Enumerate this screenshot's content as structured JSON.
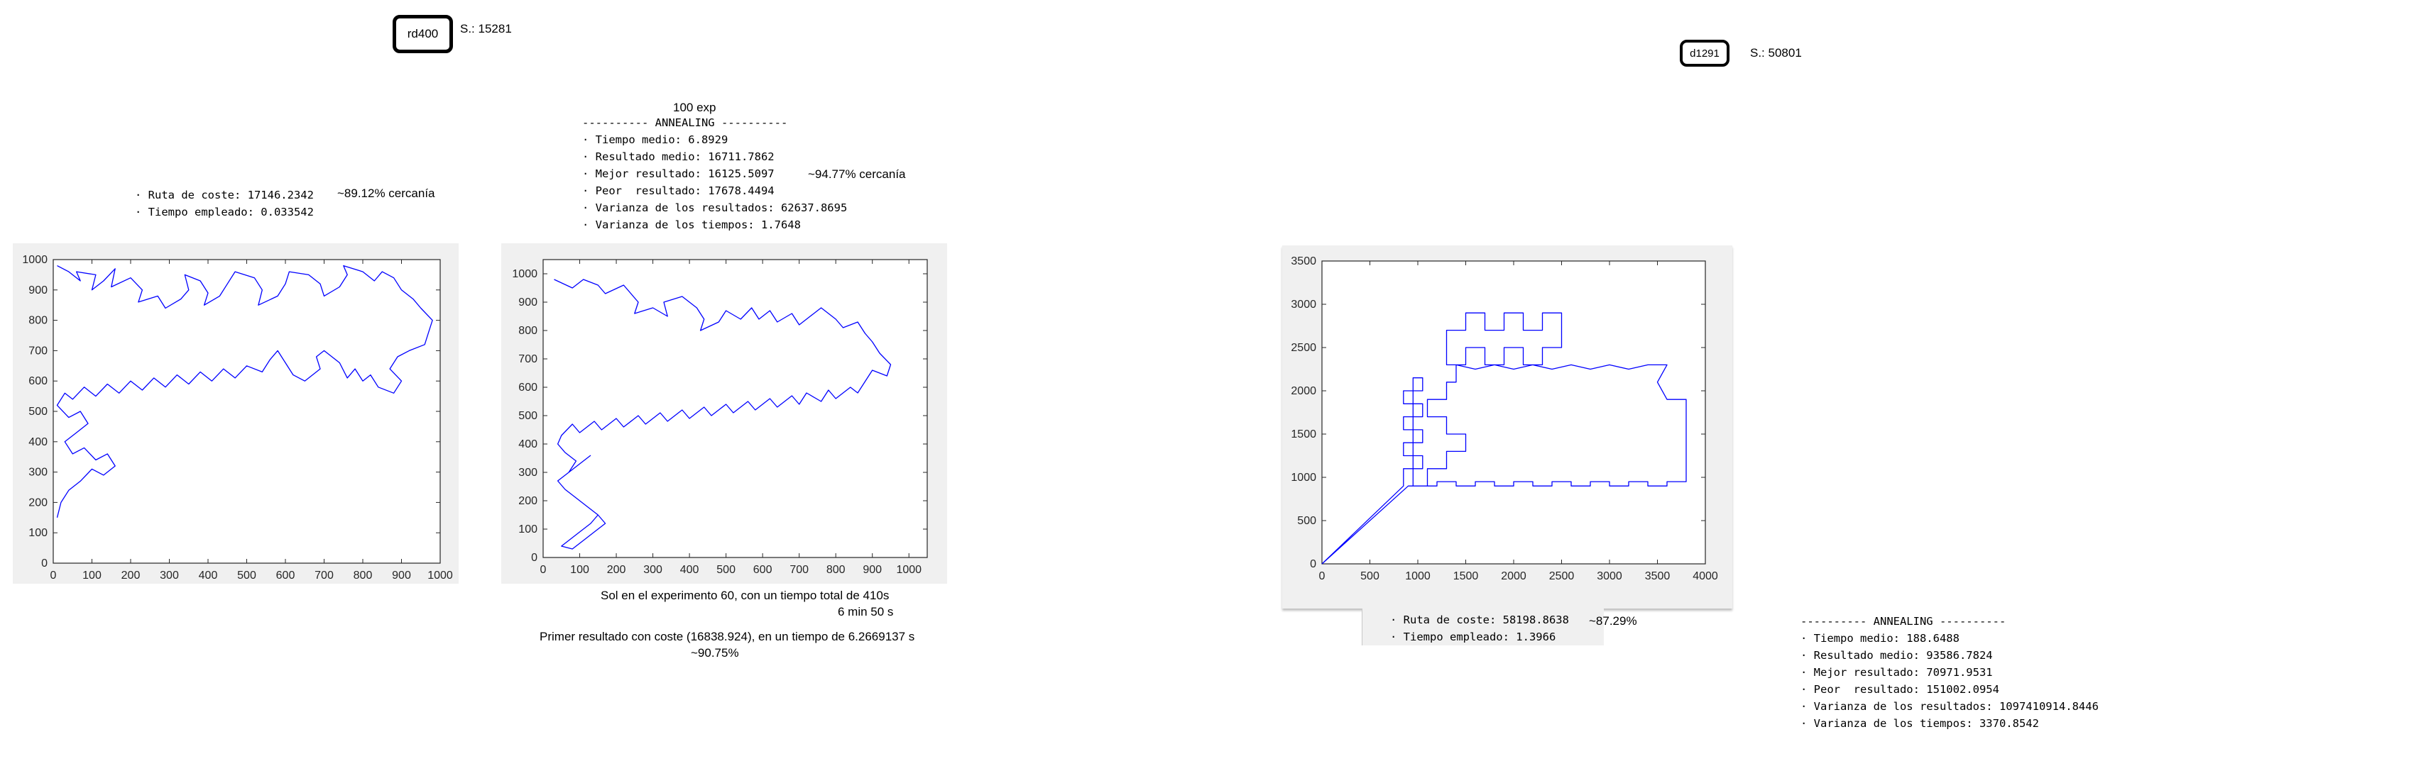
{
  "left": {
    "tag": "rd400",
    "s_label": "S.: 15281",
    "greedy_lines": [
      "· Ruta de coste: 17146.2342",
      "· Tiempo empleado: 0.033542"
    ],
    "greedy_pct": "~89.12% cercanía",
    "exp_title": "100 exp",
    "annealing_lines": [
      "---------- ANNEALING ----------",
      "· Tiempo medio: 6.8929",
      "· Resultado medio: 16711.7862",
      "· Mejor resultado: 16125.5097",
      "· Peor  resultado: 17678.4494",
      "· Varianza de los resultados: 62637.8695",
      "· Varianza de los tiempos: 1.7648"
    ],
    "best_pct": "~94.77% cercanía",
    "note1": "Sol en el experimento 60, con un tiempo total de 410s",
    "note1b": "6 min 50 s",
    "note2": "Primer resultado con coste (16838.924), en un tiempo de 6.2669137 s",
    "note2b": "~90.75%"
  },
  "right": {
    "tag": "d1291",
    "s_label": "S.: 50801",
    "greedy_lines": [
      "· Ruta de coste: 58198.8638",
      "· Tiempo empleado: 1.3966"
    ],
    "greedy_pct": "~87.29%",
    "annealing_lines": [
      "---------- ANNEALING ----------",
      "· Tiempo medio: 188.6488",
      "· Resultado medio: 93586.7824",
      "· Mejor resultado: 70971.9531",
      "· Peor  resultado: 151002.0954",
      "· Varianza de los resultados: 1097410914.8446",
      "· Varianza de los tiempos: 3370.8542"
    ]
  },
  "chart_data": [
    {
      "type": "line",
      "color": "#0000ff",
      "xlim": [
        0,
        1000
      ],
      "ylim": [
        0,
        1000
      ],
      "xticks": [
        0,
        100,
        200,
        300,
        400,
        500,
        600,
        700,
        800,
        900,
        1000
      ],
      "yticks": [
        0,
        100,
        200,
        300,
        400,
        500,
        600,
        700,
        800,
        900,
        1000
      ],
      "x": [
        10,
        40,
        70,
        60,
        110,
        100,
        130,
        160,
        150,
        200,
        230,
        220,
        270,
        290,
        330,
        350,
        340,
        380,
        400,
        390,
        430,
        450,
        470,
        520,
        540,
        530,
        580,
        600,
        610,
        660,
        690,
        700,
        740,
        760,
        750,
        800,
        830,
        850,
        880,
        900,
        930,
        950,
        980,
        970,
        960,
        920,
        890,
        870,
        900,
        880,
        840,
        820,
        800,
        780,
        760,
        740,
        700,
        680,
        690,
        650,
        620,
        600,
        580,
        560,
        540,
        500,
        470,
        440,
        410,
        380,
        350,
        320,
        290,
        260,
        230,
        200,
        170,
        140,
        110,
        80,
        50,
        30,
        10,
        40,
        70,
        90,
        60,
        30,
        50,
        80,
        110,
        140,
        160,
        130,
        100,
        70,
        40,
        20,
        10
      ],
      "y": [
        980,
        960,
        930,
        960,
        950,
        900,
        930,
        970,
        910,
        940,
        900,
        860,
        880,
        840,
        870,
        900,
        950,
        930,
        890,
        850,
        880,
        920,
        960,
        940,
        900,
        850,
        880,
        920,
        960,
        950,
        920,
        880,
        910,
        950,
        980,
        960,
        930,
        960,
        940,
        900,
        870,
        840,
        800,
        760,
        720,
        700,
        680,
        640,
        600,
        560,
        580,
        620,
        600,
        640,
        610,
        660,
        700,
        680,
        640,
        600,
        620,
        660,
        700,
        670,
        630,
        650,
        610,
        640,
        600,
        630,
        590,
        620,
        580,
        610,
        570,
        600,
        560,
        590,
        550,
        580,
        540,
        560,
        520,
        480,
        500,
        460,
        430,
        400,
        360,
        380,
        340,
        360,
        320,
        290,
        310,
        270,
        240,
        200,
        150
      ]
    },
    {
      "type": "line",
      "color": "#0000ff",
      "xlim": [
        0,
        1050
      ],
      "ylim": [
        0,
        1050
      ],
      "xticks": [
        0,
        100,
        200,
        300,
        400,
        500,
        600,
        700,
        800,
        900,
        1000
      ],
      "yticks": [
        0,
        100,
        200,
        300,
        400,
        500,
        600,
        700,
        800,
        900,
        1000
      ],
      "x": [
        30,
        80,
        110,
        150,
        170,
        220,
        260,
        250,
        300,
        340,
        330,
        380,
        420,
        440,
        430,
        480,
        500,
        540,
        570,
        590,
        620,
        640,
        680,
        700,
        730,
        760,
        800,
        820,
        860,
        880,
        900,
        920,
        950,
        940,
        900,
        880,
        860,
        840,
        800,
        780,
        760,
        720,
        700,
        680,
        640,
        620,
        580,
        560,
        520,
        500,
        460,
        440,
        400,
        380,
        340,
        320,
        280,
        260,
        220,
        200,
        160,
        140,
        100,
        80,
        50,
        40,
        60,
        90,
        70,
        40,
        60,
        90,
        120,
        150,
        130,
        100,
        70,
        50,
        80,
        110,
        140,
        170,
        150,
        120,
        90,
        60,
        40,
        70,
        100,
        130
      ],
      "y": [
        980,
        950,
        980,
        960,
        930,
        960,
        900,
        860,
        880,
        850,
        900,
        920,
        880,
        840,
        800,
        830,
        870,
        840,
        880,
        840,
        870,
        830,
        860,
        820,
        850,
        880,
        840,
        810,
        830,
        790,
        760,
        720,
        680,
        640,
        660,
        620,
        580,
        600,
        560,
        590,
        550,
        580,
        540,
        570,
        530,
        560,
        520,
        550,
        510,
        540,
        500,
        530,
        490,
        520,
        480,
        510,
        470,
        500,
        460,
        490,
        450,
        480,
        440,
        470,
        430,
        400,
        370,
        340,
        300,
        270,
        240,
        210,
        180,
        150,
        120,
        90,
        60,
        40,
        30,
        60,
        90,
        120,
        150,
        180,
        210,
        240,
        270,
        300,
        330,
        360
      ]
    },
    {
      "type": "line",
      "color": "#0000ff",
      "xlim": [
        0,
        4000
      ],
      "ylim": [
        0,
        3500
      ],
      "xticks": [
        0,
        500,
        1000,
        1500,
        2000,
        2500,
        3000,
        3500,
        4000
      ],
      "yticks": [
        0,
        500,
        1000,
        1500,
        2000,
        2500,
        3000,
        3500
      ],
      "x": [
        0,
        850,
        850,
        1050,
        1050,
        850,
        850,
        1050,
        1050,
        850,
        850,
        1050,
        1050,
        850,
        850,
        1050,
        1050,
        950,
        950,
        1200,
        1200,
        1400,
        1400,
        1600,
        1600,
        1800,
        1800,
        2000,
        2000,
        2200,
        2200,
        2400,
        2400,
        2600,
        2600,
        2800,
        2800,
        3000,
        3000,
        3200,
        3200,
        3400,
        3400,
        3600,
        3600,
        3800,
        3800,
        3600,
        3500,
        3600,
        3400,
        3200,
        3000,
        2800,
        2600,
        2400,
        2200,
        2000,
        1800,
        1600,
        1400,
        1300,
        1300,
        1500,
        1500,
        1700,
        1700,
        1900,
        1900,
        2100,
        2100,
        2300,
        2300,
        2500,
        2500,
        2300,
        2300,
        2100,
        2100,
        1900,
        1900,
        1700,
        1700,
        1500,
        1500,
        1400,
        1400,
        1300,
        1300,
        1100,
        1100,
        1300,
        1300,
        1500,
        1500,
        1300,
        1300,
        1100,
        1100,
        900,
        0
      ],
      "y": [
        0,
        900,
        1100,
        1100,
        1250,
        1250,
        1400,
        1400,
        1550,
        1550,
        1700,
        1700,
        1850,
        1850,
        2000,
        2000,
        2150,
        2150,
        900,
        900,
        950,
        950,
        900,
        900,
        950,
        950,
        900,
        900,
        950,
        950,
        900,
        900,
        950,
        950,
        900,
        900,
        950,
        950,
        900,
        900,
        950,
        950,
        900,
        900,
        950,
        950,
        1900,
        1900,
        2100,
        2300,
        2300,
        2250,
        2300,
        2250,
        2300,
        2250,
        2300,
        2250,
        2300,
        2250,
        2300,
        2300,
        2700,
        2700,
        2900,
        2900,
        2700,
        2700,
        2900,
        2900,
        2700,
        2700,
        2900,
        2900,
        2500,
        2500,
        2300,
        2300,
        2500,
        2500,
        2300,
        2300,
        2500,
        2500,
        2300,
        2300,
        2100,
        2100,
        1900,
        1900,
        1700,
        1700,
        1500,
        1500,
        1300,
        1300,
        1100,
        1100,
        900,
        900,
        0
      ]
    }
  ]
}
